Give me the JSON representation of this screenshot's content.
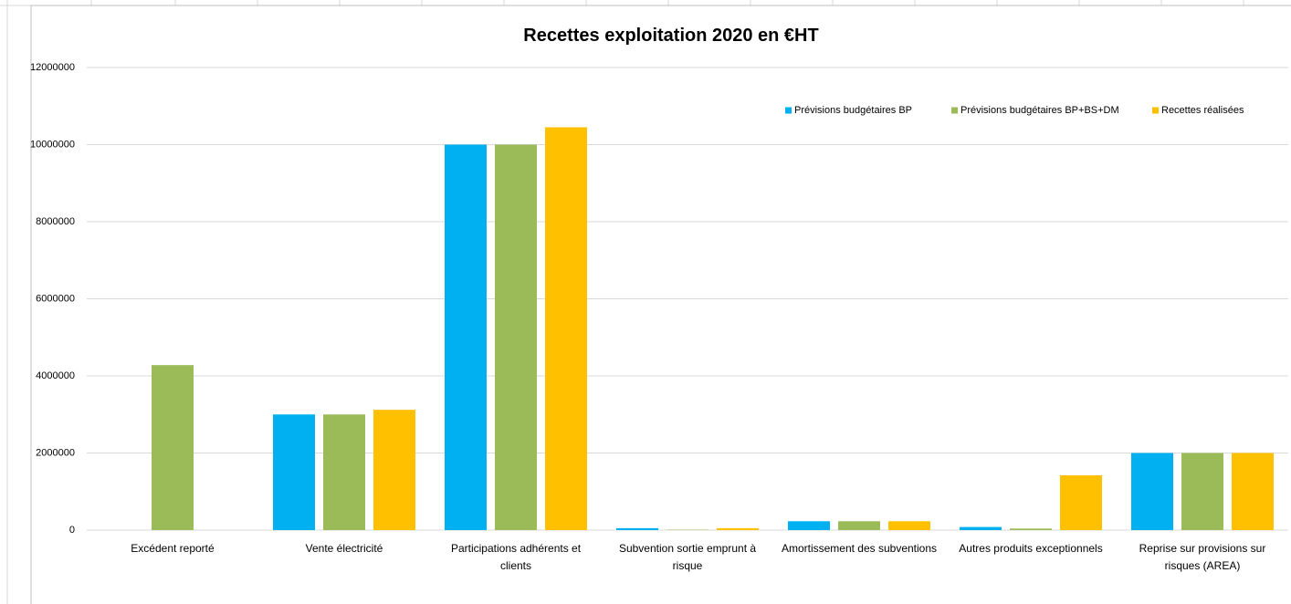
{
  "chart_data": {
    "type": "bar",
    "title": "Recettes exploitation 2020 en €HT",
    "categories": [
      "Excédent reporté",
      "Vente électricité",
      "Participations adhérents et clients",
      "Subvention sortie emprunt à risque",
      "Amortissement des subventions",
      "Autres produits exceptionnels",
      "Reprise sur provisions sur risques (AREA)"
    ],
    "series": [
      {
        "name": "Prévisions budgétaires BP",
        "color": "#00b0f0",
        "values": [
          0,
          3000000,
          10000000,
          50000,
          230000,
          80000,
          2000000
        ]
      },
      {
        "name": "Prévisions budgétaires BP+BS+DM",
        "color": "#9bbb59",
        "values": [
          4280000,
          3000000,
          10000000,
          10000,
          230000,
          40000,
          2000000
        ]
      },
      {
        "name": "Recettes réalisées",
        "color": "#ffc000",
        "values": [
          0,
          3120000,
          10450000,
          50000,
          230000,
          1420000,
          2000000
        ]
      }
    ],
    "ylim": [
      0,
      12000000
    ],
    "yticks": [
      0,
      2000000,
      4000000,
      6000000,
      8000000,
      10000000,
      12000000
    ],
    "grid": true,
    "legend": "top-right"
  }
}
